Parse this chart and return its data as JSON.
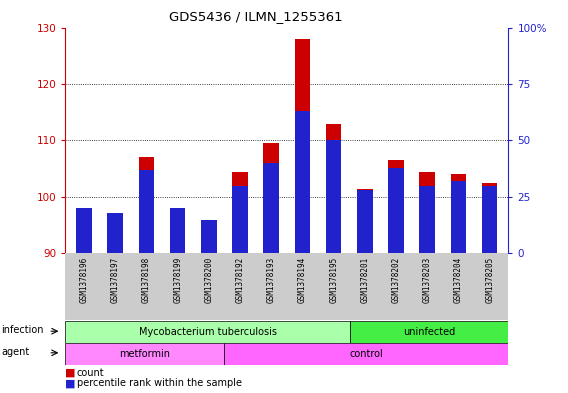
{
  "title": "GDS5436 / ILMN_1255361",
  "samples": [
    "GSM1378196",
    "GSM1378197",
    "GSM1378198",
    "GSM1378199",
    "GSM1378200",
    "GSM1378192",
    "GSM1378193",
    "GSM1378194",
    "GSM1378195",
    "GSM1378201",
    "GSM1378202",
    "GSM1378203",
    "GSM1378204",
    "GSM1378205"
  ],
  "counts": [
    97.5,
    97.0,
    107.0,
    97.5,
    95.5,
    104.5,
    109.5,
    128.0,
    113.0,
    101.5,
    106.5,
    104.5,
    104.0,
    102.5
  ],
  "percentiles": [
    20,
    18,
    37,
    20,
    15,
    30,
    40,
    63,
    50,
    28,
    38,
    30,
    32,
    30
  ],
  "ylim_left": [
    90,
    130
  ],
  "ylim_right": [
    0,
    100
  ],
  "yticks_left": [
    90,
    100,
    110,
    120,
    130
  ],
  "yticks_right": [
    0,
    25,
    50,
    75,
    100
  ],
  "bar_color": "#cc0000",
  "percentile_color": "#2222cc",
  "grid_color": "#000000",
  "bar_width": 0.5,
  "infection_groups": [
    {
      "label": "Mycobacterium tuberculosis",
      "start": 0,
      "end": 8,
      "color": "#aaffaa"
    },
    {
      "label": "uninfected",
      "start": 9,
      "end": 13,
      "color": "#44ee44"
    }
  ],
  "agent_groups": [
    {
      "label": "metformin",
      "start": 0,
      "end": 4,
      "color": "#ff88ff"
    },
    {
      "label": "control",
      "start": 5,
      "end": 13,
      "color": "#ff66ff"
    }
  ],
  "infection_label": "infection",
  "agent_label": "agent",
  "legend_count_label": "count",
  "legend_percentile_label": "percentile rank within the sample",
  "axis_left_color": "#cc0000",
  "axis_right_color": "#2222cc",
  "tick_area_color": "#cccccc"
}
